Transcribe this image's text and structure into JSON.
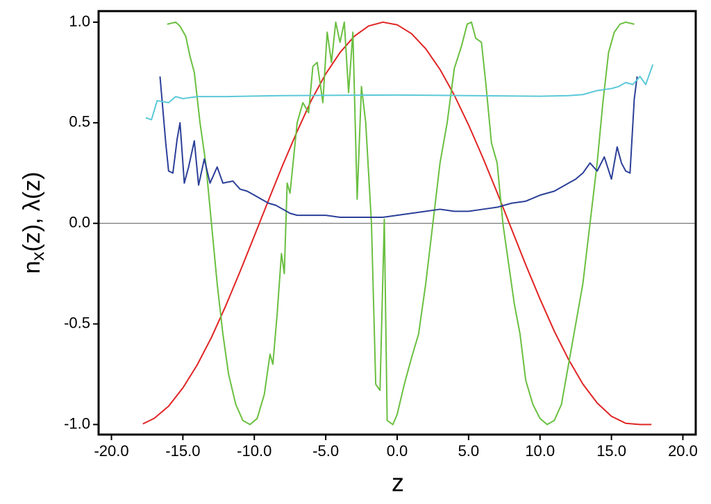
{
  "chart_data": {
    "type": "line",
    "xlabel": "z",
    "ylabel": [
      "n",
      "x",
      "(z), λ(z)"
    ],
    "xlim": [
      -20.9,
      20.9
    ],
    "ylim": [
      -1.05,
      1.055
    ],
    "xticks": [
      {
        "value": -20,
        "label": "-20.0"
      },
      {
        "value": -15,
        "label": "-15.0"
      },
      {
        "value": -10,
        "label": "-10.0"
      },
      {
        "value": -5,
        "label": "-5.0"
      },
      {
        "value": 0,
        "label": "0.0"
      },
      {
        "value": 5,
        "label": "5.0"
      },
      {
        "value": 10,
        "label": "10.0"
      },
      {
        "value": 15,
        "label": "15.0"
      },
      {
        "value": 20,
        "label": "20.0"
      }
    ],
    "yticks": [
      {
        "value": -1,
        "label": "-1.0"
      },
      {
        "value": -0.5,
        "label": "-0.5"
      },
      {
        "value": 0,
        "label": "0.0"
      },
      {
        "value": 0.5,
        "label": "0.5"
      },
      {
        "value": 1,
        "label": "1.0"
      }
    ],
    "hline": 0,
    "grid": false,
    "series": [
      {
        "color": "#e02424",
        "x": [
          -17.8,
          -17,
          -16,
          -15,
          -14,
          -13,
          -12,
          -11,
          -10,
          -9,
          -8,
          -7,
          -6,
          -5,
          -4,
          -3,
          -2,
          -1,
          0,
          1,
          2,
          3,
          4,
          5,
          6,
          7,
          8,
          9,
          10,
          11,
          12,
          13,
          14,
          15,
          16,
          17,
          17.8
        ],
        "values": [
          -0.997,
          -0.969,
          -0.909,
          -0.818,
          -0.704,
          -0.567,
          -0.41,
          -0.24,
          -0.063,
          0.116,
          0.292,
          0.457,
          0.613,
          0.743,
          0.849,
          0.93,
          0.981,
          1.0,
          0.987,
          0.943,
          0.868,
          0.765,
          0.637,
          0.489,
          0.326,
          0.153,
          -0.027,
          -0.206,
          -0.376,
          -0.536,
          -0.677,
          -0.799,
          -0.893,
          -0.959,
          -0.994,
          -1.0,
          -1.0
        ]
      },
      {
        "color": "#6abf40",
        "x": [
          -16.1,
          -15.5,
          -15.2,
          -14.8,
          -14.5,
          -14.2,
          -13.8,
          -13.4,
          -13,
          -12.6,
          -12.2,
          -11.8,
          -11.3,
          -10.8,
          -10.3,
          -9.8,
          -9.3,
          -8.9,
          -8.7,
          -8.4,
          -8.1,
          -7.9,
          -7.7,
          -7.5,
          -7,
          -6.6,
          -6.2,
          -5.9,
          -5.6,
          -5.2,
          -4.9,
          -4.6,
          -4.3,
          -4.0,
          -3.7,
          -3.4,
          -3.1,
          -2.8,
          -2.5,
          -2.2,
          -1.8,
          -1.5,
          -1.2,
          -0.9,
          -0.7,
          -0.3,
          0,
          0.5,
          1,
          1.5,
          2,
          2.5,
          3,
          3.5,
          4,
          4.5,
          4.9,
          5.2,
          5.5,
          5.9,
          6.2,
          6.6,
          7,
          7.4,
          7.8,
          8.2,
          8.6,
          9,
          9.5,
          10,
          10.5,
          11,
          11.5,
          12,
          12.5,
          13,
          13.5,
          14,
          14.4,
          14.8,
          15.2,
          15.6,
          16,
          16.6
        ],
        "values": [
          0.99,
          1.0,
          0.98,
          0.93,
          0.83,
          0.75,
          0.5,
          0.3,
          0.0,
          -0.3,
          -0.55,
          -0.75,
          -0.9,
          -0.98,
          -1.0,
          -0.97,
          -0.85,
          -0.65,
          -0.7,
          -0.45,
          -0.15,
          -0.25,
          0.2,
          0.15,
          0.5,
          0.6,
          0.55,
          0.78,
          0.8,
          0.6,
          0.95,
          0.8,
          1.0,
          0.9,
          1.0,
          0.65,
          0.95,
          0.12,
          0.68,
          0.5,
          0.0,
          -0.8,
          -0.83,
          0.02,
          -0.98,
          -1.0,
          -0.95,
          -0.8,
          -0.67,
          -0.55,
          -0.3,
          0.0,
          0.3,
          0.5,
          0.77,
          0.88,
          0.99,
          1.0,
          0.92,
          0.9,
          0.7,
          0.4,
          0.3,
          0.0,
          -0.2,
          -0.4,
          -0.55,
          -0.78,
          -0.9,
          -0.97,
          -1.0,
          -0.98,
          -0.9,
          -0.7,
          -0.5,
          -0.3,
          0.0,
          0.3,
          0.6,
          0.85,
          0.95,
          0.99,
          1.0,
          0.99
        ]
      },
      {
        "color": "#2b3f98",
        "x": [
          -16.6,
          -16.2,
          -16,
          -15.7,
          -15.4,
          -15.2,
          -14.9,
          -14.6,
          -14.2,
          -13.9,
          -13.5,
          -13.1,
          -12.6,
          -12.2,
          -11.5,
          -11,
          -10.5,
          -10,
          -9.5,
          -9,
          -8.5,
          -8,
          -7.5,
          -7,
          -6,
          -5,
          -4,
          -3,
          -2,
          -1,
          0,
          1,
          2,
          3,
          4,
          5,
          6,
          7,
          8,
          9,
          10,
          11,
          12,
          12.5,
          13,
          13.5,
          14,
          14.5,
          15,
          15.4,
          15.7,
          16,
          16.3,
          16.6,
          16.8
        ],
        "values": [
          0.73,
          0.4,
          0.26,
          0.25,
          0.42,
          0.5,
          0.2,
          0.28,
          0.41,
          0.19,
          0.32,
          0.2,
          0.28,
          0.2,
          0.21,
          0.17,
          0.16,
          0.14,
          0.12,
          0.1,
          0.09,
          0.07,
          0.05,
          0.04,
          0.04,
          0.04,
          0.03,
          0.03,
          0.03,
          0.03,
          0.04,
          0.05,
          0.06,
          0.07,
          0.06,
          0.06,
          0.07,
          0.08,
          0.1,
          0.11,
          0.14,
          0.16,
          0.2,
          0.22,
          0.25,
          0.3,
          0.26,
          0.33,
          0.22,
          0.38,
          0.3,
          0.26,
          0.25,
          0.62,
          0.73
        ]
      },
      {
        "color": "#5bc8d8",
        "x": [
          -17.6,
          -17.2,
          -16.8,
          -16,
          -15.5,
          -15,
          -14,
          -12,
          -8,
          0,
          5,
          10,
          12,
          13,
          14,
          15,
          15.5,
          16,
          16.5,
          17,
          17.4,
          17.9
        ],
        "values": [
          0.525,
          0.515,
          0.61,
          0.6,
          0.63,
          0.62,
          0.63,
          0.63,
          0.635,
          0.638,
          0.635,
          0.632,
          0.635,
          0.64,
          0.66,
          0.67,
          0.68,
          0.7,
          0.69,
          0.73,
          0.69,
          0.79
        ]
      }
    ]
  }
}
